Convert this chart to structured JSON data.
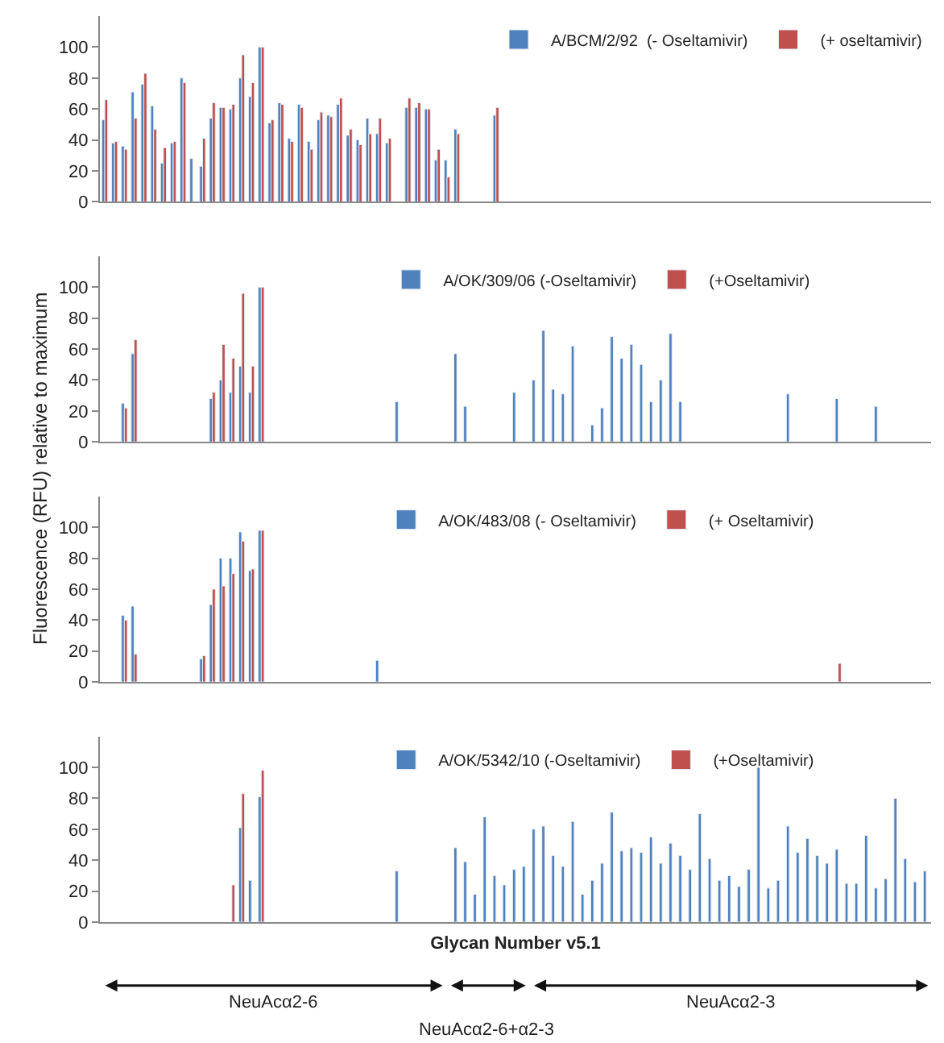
{
  "chart_data": [
    {
      "type": "bar",
      "legend": "top right",
      "ylim": [
        0,
        120
      ],
      "yticks": [
        0,
        20,
        40,
        60,
        80,
        100
      ],
      "categories": [
        null,
        null,
        null,
        null,
        null,
        null,
        null,
        null,
        null,
        null,
        null,
        null,
        null,
        null,
        null,
        null,
        null,
        null,
        null,
        null,
        null,
        null,
        null,
        null,
        null,
        null,
        null,
        null,
        null,
        null,
        null,
        null,
        null,
        null,
        null,
        null,
        null,
        null,
        null,
        null,
        null,
        null,
        null,
        null,
        null,
        null,
        null,
        null,
        null,
        null,
        null,
        null,
        null,
        null,
        null,
        null,
        null,
        null,
        null,
        null,
        null,
        null,
        null,
        null,
        null,
        null,
        null,
        null,
        null,
        null,
        null,
        null,
        null,
        null,
        null,
        null,
        null,
        null,
        null,
        null,
        null,
        null,
        null,
        null,
        null
      ],
      "series": [
        {
          "name": "A/BCM/2/92  (- Oseltamivir)",
          "color": "#4f81bd",
          "values": [
            53,
            38,
            36,
            71,
            76,
            62,
            25,
            38,
            80,
            28,
            23,
            54,
            61,
            60,
            80,
            68,
            100,
            51,
            64,
            41,
            63,
            39,
            53,
            56,
            63,
            43,
            40,
            54,
            44,
            38,
            null,
            61,
            61,
            60,
            27,
            27,
            47,
            null,
            null,
            null,
            56,
            null,
            null,
            null,
            null,
            null,
            null,
            null,
            null,
            null,
            null,
            null,
            null,
            null,
            null,
            null,
            null,
            null,
            null,
            null,
            null,
            null,
            null,
            null,
            null,
            null,
            null,
            null,
            null,
            null,
            null,
            null,
            null,
            null,
            null,
            null,
            null,
            null,
            null,
            null,
            null,
            null,
            null,
            null,
            null
          ]
        },
        {
          "name": "(+ oseltamivir)",
          "color": "#c0504d",
          "values": [
            66,
            39,
            34,
            54,
            83,
            47,
            35,
            39,
            77,
            null,
            41,
            64,
            61,
            63,
            95,
            77,
            100,
            53,
            63,
            39,
            61,
            34,
            58,
            55,
            67,
            47,
            37,
            44,
            54,
            41,
            null,
            67,
            64,
            60,
            34,
            16,
            44,
            null,
            null,
            null,
            61,
            null,
            null,
            null,
            null,
            null,
            null,
            null,
            null,
            null,
            null,
            null,
            null,
            null,
            null,
            null,
            null,
            null,
            null,
            null,
            null,
            null,
            null,
            null,
            null,
            null,
            null,
            null,
            null,
            null,
            null,
            null,
            null,
            null,
            null,
            null,
            null,
            null,
            null,
            null,
            null,
            null,
            null,
            null,
            null
          ]
        }
      ]
    },
    {
      "type": "bar",
      "legend": "top",
      "ylim": [
        0,
        120
      ],
      "yticks": [
        0,
        20,
        40,
        60,
        80,
        100
      ],
      "ylabel": "Fluorescence (RFU) relative to maximum",
      "categories": [
        null,
        null,
        null,
        null,
        null,
        null,
        null,
        null,
        null,
        null,
        null,
        null,
        null,
        null,
        null,
        null,
        null,
        null,
        null,
        null,
        null,
        null,
        null,
        null,
        null,
        null,
        null,
        null,
        null,
        null,
        null,
        null,
        null,
        null,
        null,
        null,
        null,
        null,
        null,
        null,
        null,
        null,
        null,
        null,
        null,
        null,
        null,
        null,
        null,
        null,
        null,
        null,
        null,
        null,
        null,
        null,
        null,
        null,
        null,
        null,
        null,
        null,
        null,
        null,
        null,
        null,
        null,
        null,
        null,
        null,
        null,
        null,
        null,
        null,
        null,
        null,
        null,
        null,
        null,
        null,
        null,
        null,
        null,
        null,
        null
      ],
      "series": [
        {
          "name": "A/OK/309/06 (-Oseltamivir)",
          "color": "#4f81bd",
          "values": [
            null,
            null,
            25,
            57,
            null,
            null,
            null,
            null,
            null,
            null,
            null,
            28,
            40,
            32,
            49,
            32,
            100,
            null,
            null,
            null,
            null,
            null,
            null,
            null,
            null,
            null,
            null,
            null,
            null,
            null,
            26,
            null,
            null,
            null,
            null,
            null,
            57,
            23,
            null,
            null,
            null,
            null,
            32,
            null,
            40,
            72,
            34,
            31,
            62,
            null,
            11,
            22,
            68,
            54,
            63,
            50,
            26,
            40,
            70,
            26,
            null,
            null,
            null,
            null,
            null,
            null,
            null,
            null,
            null,
            null,
            31,
            null,
            null,
            null,
            null,
            28,
            null,
            null,
            null,
            23,
            null,
            null,
            null,
            null,
            null
          ]
        },
        {
          "name": "(+Oseltamivir)",
          "color": "#c0504d",
          "values": [
            null,
            null,
            22,
            66,
            null,
            null,
            null,
            null,
            null,
            null,
            null,
            32,
            63,
            54,
            96,
            49,
            100,
            null,
            null,
            null,
            null,
            null,
            null,
            null,
            null,
            null,
            null,
            null,
            null,
            null,
            null,
            null,
            null,
            null,
            null,
            null,
            null,
            null,
            null,
            null,
            null,
            null,
            null,
            null,
            null,
            null,
            null,
            null,
            null,
            null,
            null,
            null,
            null,
            null,
            null,
            null,
            null,
            null,
            null,
            null,
            null,
            null,
            null,
            null,
            null,
            null,
            null,
            null,
            null,
            null,
            null,
            null,
            null,
            null,
            null,
            null,
            null,
            null,
            null,
            null,
            null,
            null,
            null,
            null,
            null
          ]
        }
      ]
    },
    {
      "type": "bar",
      "legend": "top",
      "ylim": [
        0,
        120
      ],
      "yticks": [
        0,
        20,
        40,
        60,
        80,
        100
      ],
      "categories": [
        null,
        null,
        null,
        null,
        null,
        null,
        null,
        null,
        null,
        null,
        null,
        null,
        null,
        null,
        null,
        null,
        null,
        null,
        null,
        null,
        null,
        null,
        null,
        null,
        null,
        null,
        null,
        null,
        null,
        null,
        null,
        null,
        null,
        null,
        null,
        null,
        null,
        null,
        null,
        null,
        null,
        null,
        null,
        null,
        null,
        null,
        null,
        null,
        null,
        null,
        null,
        null,
        null,
        null,
        null,
        null,
        null,
        null,
        null,
        null,
        null,
        null,
        null,
        null,
        null,
        null,
        null,
        null,
        null,
        null,
        null,
        null,
        null,
        null,
        null,
        null,
        null,
        null,
        null,
        null,
        null,
        null,
        null,
        null,
        null
      ],
      "series": [
        {
          "name": "A/OK/483/08 (- Oseltamivir)",
          "color": "#4f81bd",
          "values": [
            null,
            null,
            43,
            49,
            null,
            null,
            null,
            null,
            null,
            null,
            15,
            50,
            80,
            80,
            97,
            72,
            98,
            null,
            null,
            null,
            null,
            null,
            null,
            null,
            null,
            null,
            null,
            null,
            14,
            null,
            null,
            null,
            null,
            null,
            null,
            null,
            null,
            null,
            null,
            null,
            null,
            null,
            null,
            null,
            null,
            null,
            null,
            null,
            null,
            null,
            null,
            null,
            null,
            null,
            null,
            null,
            null,
            null,
            null,
            null,
            null,
            null,
            null,
            null,
            null,
            null,
            null,
            null,
            null,
            null,
            null,
            null,
            null,
            null,
            null,
            null,
            null,
            null,
            null,
            null,
            null,
            null,
            null,
            null,
            null
          ]
        },
        {
          "name": "(+ Oseltamivir)",
          "color": "#c0504d",
          "values": [
            null,
            null,
            40,
            18,
            null,
            null,
            null,
            null,
            null,
            null,
            17,
            60,
            62,
            70,
            91,
            73,
            98,
            null,
            null,
            null,
            null,
            null,
            null,
            null,
            null,
            null,
            null,
            null,
            null,
            null,
            null,
            null,
            null,
            null,
            null,
            null,
            null,
            null,
            null,
            null,
            null,
            null,
            null,
            null,
            null,
            null,
            null,
            null,
            null,
            null,
            null,
            null,
            null,
            null,
            null,
            null,
            null,
            null,
            null,
            null,
            null,
            null,
            null,
            null,
            null,
            null,
            null,
            null,
            null,
            null,
            null,
            null,
            null,
            null,
            null,
            12,
            null,
            null,
            null,
            null,
            null,
            null,
            null,
            null,
            null
          ]
        }
      ]
    },
    {
      "type": "bar",
      "legend": "top",
      "ylim": [
        0,
        120
      ],
      "yticks": [
        0,
        20,
        40,
        60,
        80,
        100
      ],
      "xlabel": "Glycan Number v5.1",
      "annotations": [
        "NeuAcα2-6",
        "NeuAcα2-6+α2-3",
        "NeuAcα2-3"
      ],
      "categories": [
        null,
        null,
        null,
        null,
        null,
        null,
        null,
        null,
        null,
        null,
        null,
        null,
        null,
        null,
        null,
        null,
        null,
        null,
        null,
        null,
        null,
        null,
        null,
        null,
        null,
        null,
        null,
        null,
        null,
        null,
        null,
        null,
        null,
        null,
        null,
        null,
        null,
        null,
        null,
        null,
        null,
        null,
        null,
        null,
        null,
        null,
        null,
        null,
        null,
        null,
        null,
        null,
        null,
        null,
        null,
        null,
        null,
        null,
        null,
        null,
        null,
        null,
        null,
        null,
        null,
        null,
        null,
        null,
        null,
        null,
        null,
        null,
        null,
        null,
        null,
        null,
        null,
        null,
        null,
        null,
        null,
        null,
        null,
        null,
        null
      ],
      "series": [
        {
          "name": "A/OK/5342/10 (-Oseltamivir)",
          "color": "#4f81bd",
          "values": [
            null,
            null,
            null,
            null,
            null,
            null,
            null,
            null,
            null,
            null,
            null,
            null,
            null,
            null,
            61,
            27,
            81,
            null,
            null,
            null,
            null,
            null,
            null,
            null,
            null,
            null,
            null,
            null,
            null,
            null,
            33,
            null,
            null,
            null,
            null,
            null,
            48,
            39,
            18,
            68,
            30,
            24,
            34,
            36,
            60,
            62,
            43,
            36,
            65,
            18,
            27,
            38,
            71,
            46,
            48,
            45,
            55,
            38,
            51,
            43,
            34,
            70,
            41,
            27,
            30,
            23,
            34,
            100,
            22,
            27,
            62,
            45,
            54,
            43,
            38,
            47,
            25,
            25,
            56,
            22,
            28,
            80,
            41,
            26,
            33
          ]
        },
        {
          "name": "(+Oseltamivir)",
          "color": "#c0504d",
          "values": [
            null,
            null,
            null,
            null,
            null,
            null,
            null,
            null,
            null,
            null,
            null,
            null,
            null,
            24,
            83,
            null,
            98,
            null,
            null,
            null,
            null,
            null,
            null,
            null,
            null,
            null,
            null,
            null,
            null,
            null,
            null,
            null,
            null,
            null,
            null,
            null,
            null,
            null,
            null,
            null,
            null,
            null,
            null,
            null,
            null,
            null,
            null,
            null,
            null,
            null,
            null,
            null,
            null,
            null,
            null,
            null,
            null,
            null,
            null,
            null,
            null,
            null,
            null,
            null,
            null,
            null,
            null,
            null,
            null,
            null,
            null,
            null,
            null,
            null,
            null,
            null,
            null,
            null,
            null,
            null,
            null,
            null,
            null,
            null,
            null
          ]
        }
      ]
    }
  ]
}
